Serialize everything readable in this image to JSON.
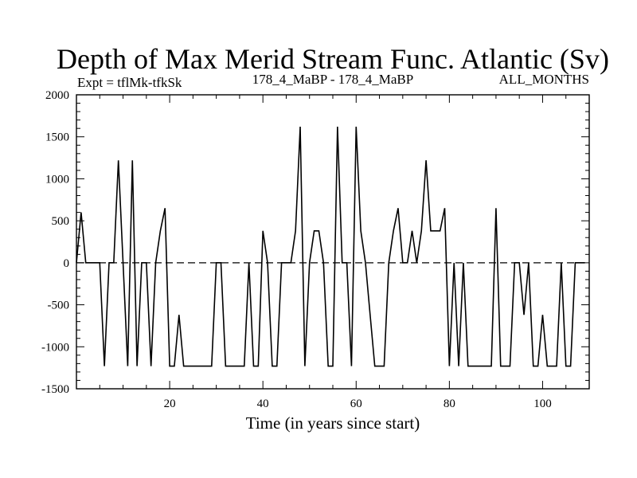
{
  "chart_data": {
    "type": "line",
    "title": "Depth of Max Merid Stream Func. Atlantic (Sv)",
    "subtitle_left": "Expt = tflMk-tfkSk",
    "subtitle_center": "178_4_MaBP - 178_4_MaBP",
    "subtitle_right": "ALL_MONTHS",
    "xlabel": "Time (in years since start)",
    "ylabel": "",
    "xlim": [
      0,
      110
    ],
    "ylim": [
      -1500,
      2000
    ],
    "xticks": [
      20,
      40,
      60,
      80,
      100
    ],
    "xtick_labels": [
      "20",
      "40",
      "60",
      "80",
      "100"
    ],
    "yticks": [
      -1500,
      -1000,
      -500,
      0,
      500,
      1000,
      1500,
      2000
    ],
    "ytick_labels": [
      "-1500",
      "-1000",
      "-500",
      "0",
      "500",
      "1000",
      "1500",
      "2000"
    ],
    "reference_line": 0,
    "series": [
      {
        "name": "depth",
        "x": [
          0,
          1,
          2,
          3,
          4,
          5,
          6,
          7,
          8,
          9,
          10,
          11,
          12,
          13,
          14,
          15,
          16,
          17,
          18,
          19,
          20,
          21,
          22,
          23,
          24,
          25,
          26,
          27,
          28,
          29,
          30,
          31,
          32,
          33,
          34,
          35,
          36,
          37,
          38,
          39,
          40,
          41,
          42,
          43,
          44,
          45,
          46,
          47,
          48,
          49,
          50,
          51,
          52,
          53,
          54,
          55,
          56,
          57,
          58,
          59,
          60,
          61,
          62,
          63,
          64,
          65,
          66,
          67,
          68,
          69,
          70,
          71,
          72,
          73,
          74,
          75,
          76,
          77,
          78,
          79,
          80,
          81,
          82,
          83,
          84,
          85,
          86,
          87,
          88,
          89,
          90,
          91,
          92,
          93,
          94,
          95,
          96,
          97,
          98,
          99,
          100,
          101,
          102,
          103,
          104,
          105,
          106,
          107,
          108,
          109
        ],
        "y": [
          0,
          600,
          0,
          0,
          0,
          0,
          -1230,
          0,
          0,
          1220,
          0,
          -1230,
          1220,
          -1230,
          0,
          0,
          -1230,
          0,
          380,
          650,
          -1230,
          -1230,
          -620,
          -1230,
          -1230,
          -1230,
          -1230,
          -1230,
          -1230,
          -1230,
          0,
          0,
          -1230,
          -1230,
          -1230,
          -1230,
          -1230,
          0,
          -1230,
          -1230,
          380,
          0,
          -1230,
          -1230,
          0,
          0,
          0,
          380,
          1620,
          -1230,
          0,
          380,
          380,
          0,
          -1230,
          -1230,
          1620,
          0,
          0,
          -1230,
          1620,
          380,
          0,
          -620,
          -1230,
          -1230,
          -1230,
          0,
          380,
          650,
          0,
          0,
          380,
          0,
          380,
          1220,
          380,
          380,
          380,
          650,
          -1230,
          0,
          -1230,
          0,
          -1230,
          -1230,
          -1230,
          -1230,
          -1230,
          -1230,
          650,
          -1230,
          -1230,
          -1230,
          0,
          0,
          -620,
          0,
          -1230,
          -1230,
          -620,
          -1230,
          -1230,
          -1230,
          0,
          -1230,
          -1230,
          0,
          0,
          0
        ]
      }
    ]
  }
}
